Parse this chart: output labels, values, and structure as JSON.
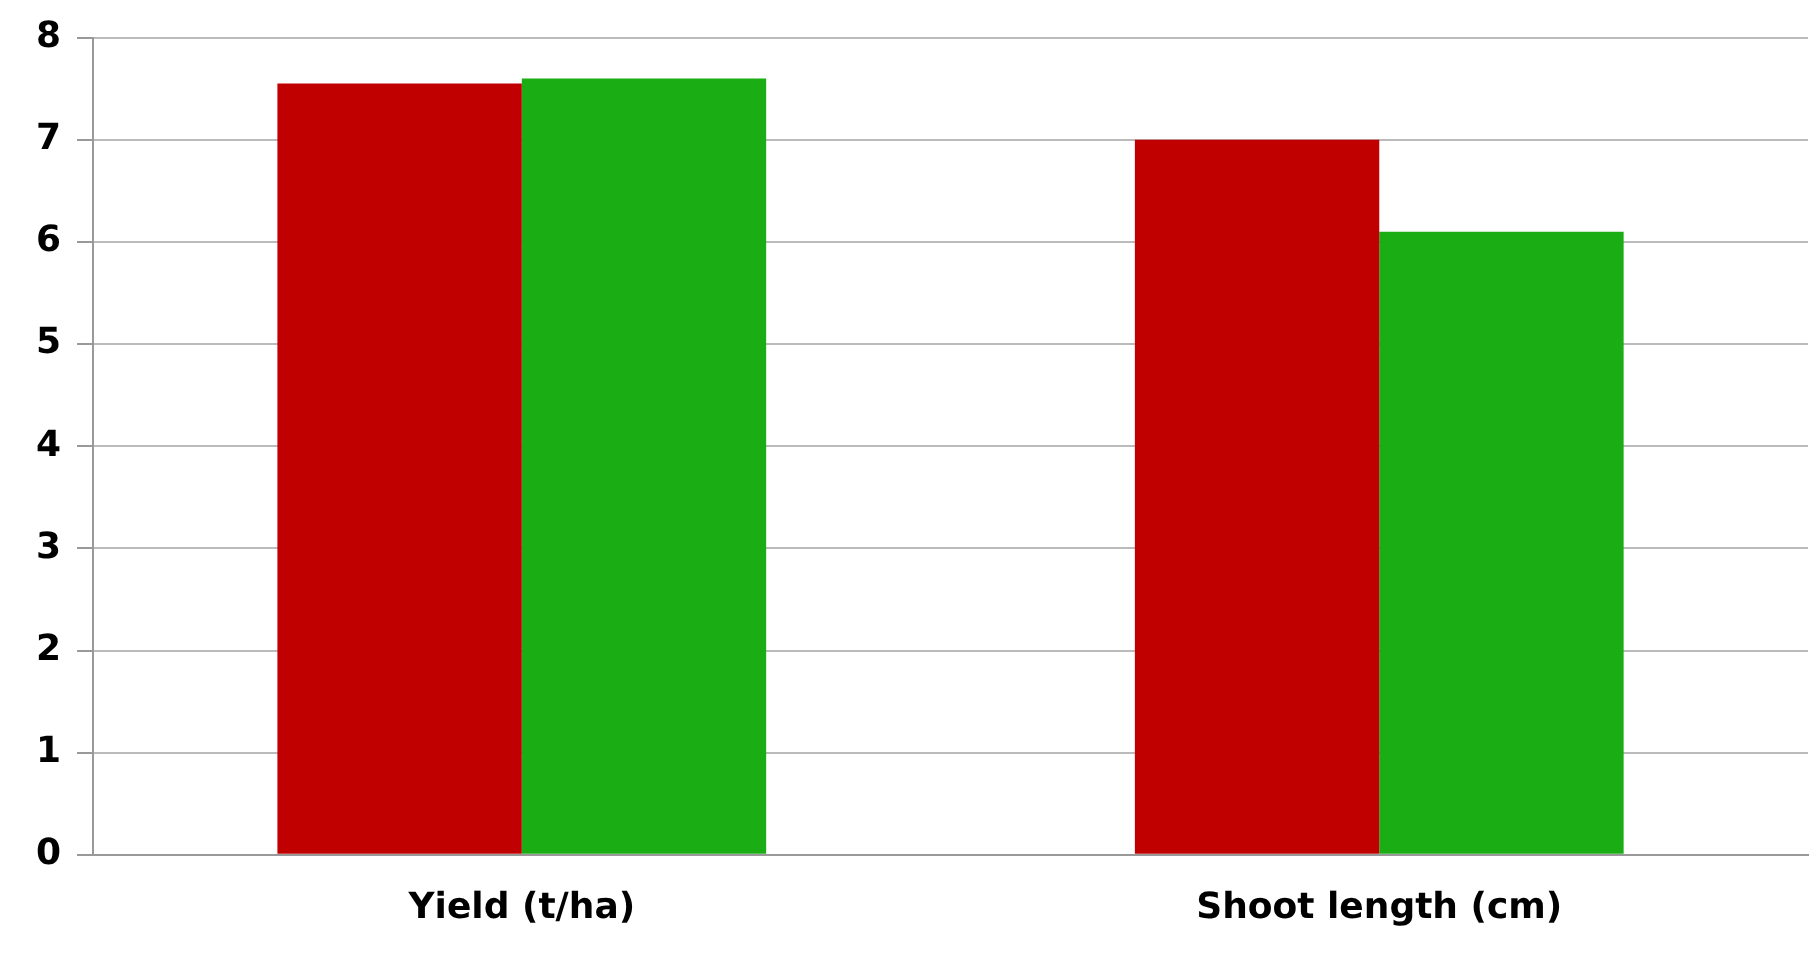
{
  "chart_data": {
    "type": "bar",
    "categories": [
      "Yield (t/ha)",
      "Shoot length (cm)"
    ],
    "series": [
      {
        "color": "#c00000",
        "values": [
          7.55,
          7.0
        ]
      },
      {
        "color": "#1aad14",
        "values": [
          7.6,
          6.1
        ]
      }
    ],
    "ylim": [
      0,
      8
    ],
    "yticks": [
      0,
      1,
      2,
      3,
      4,
      5,
      6,
      7,
      8
    ],
    "grid": "y",
    "legend": false
  }
}
